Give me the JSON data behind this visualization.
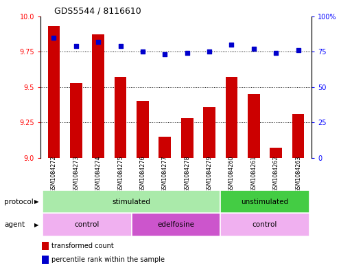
{
  "title": "GDS5544 / 8116610",
  "samples": [
    "GSM1084272",
    "GSM1084273",
    "GSM1084274",
    "GSM1084275",
    "GSM1084276",
    "GSM1084277",
    "GSM1084278",
    "GSM1084279",
    "GSM1084260",
    "GSM1084261",
    "GSM1084262",
    "GSM1084263"
  ],
  "transformed_count": [
    9.93,
    9.53,
    9.87,
    9.57,
    9.4,
    9.15,
    9.28,
    9.36,
    9.57,
    9.45,
    9.07,
    9.31
  ],
  "percentile_rank": [
    85,
    79,
    82,
    79,
    75,
    73,
    74,
    75,
    80,
    77,
    74,
    76
  ],
  "ylim_left": [
    9.0,
    10.0
  ],
  "ylim_right": [
    0,
    100
  ],
  "bar_color": "#cc0000",
  "dot_color": "#0000cc",
  "bg_color": "#ffffff",
  "tick_left": [
    9.0,
    9.25,
    9.5,
    9.75,
    10.0
  ],
  "tick_right": [
    0,
    25,
    50,
    75,
    100
  ],
  "bar_width": 0.55,
  "prot_data": [
    {
      "label": "stimulated",
      "start": 0,
      "end": 7,
      "color": "#aaeaaa"
    },
    {
      "label": "unstimulated",
      "start": 8,
      "end": 11,
      "color": "#44cc44"
    }
  ],
  "agent_data": [
    {
      "label": "control",
      "start": 0,
      "end": 3,
      "color": "#f0b0f0"
    },
    {
      "label": "edelfosine",
      "start": 4,
      "end": 7,
      "color": "#cc55cc"
    },
    {
      "label": "control",
      "start": 8,
      "end": 11,
      "color": "#f0b0f0"
    }
  ]
}
